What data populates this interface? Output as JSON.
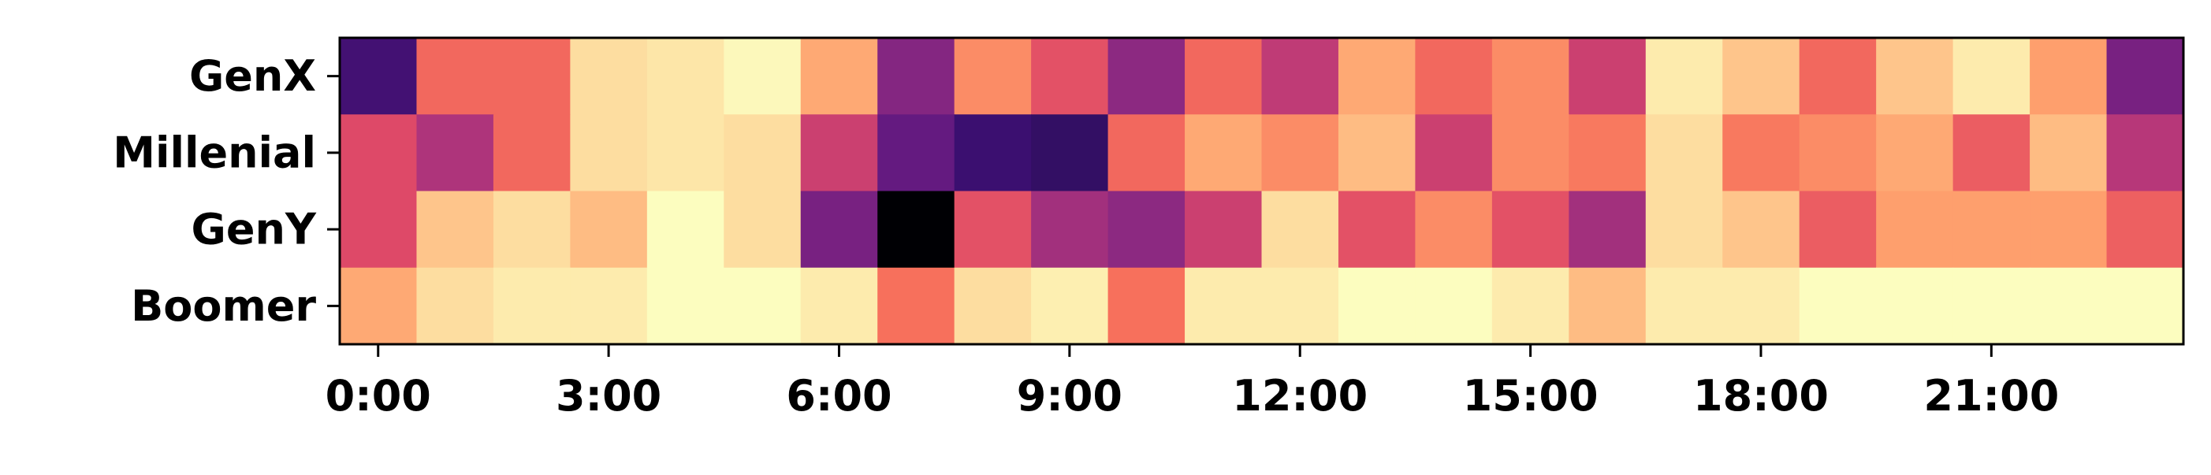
{
  "chart_data": {
    "type": "heatmap",
    "title": "",
    "xlabel": "",
    "ylabel": "",
    "colormap": "magma",
    "value_range": [
      0,
      1
    ],
    "rows": [
      "GenX",
      "Millenial",
      "GenY",
      "Boomer"
    ],
    "columns": [
      "0:00",
      "1:00",
      "2:00",
      "3:00",
      "4:00",
      "5:00",
      "6:00",
      "7:00",
      "8:00",
      "9:00",
      "10:00",
      "11:00",
      "12:00",
      "13:00",
      "14:00",
      "15:00",
      "16:00",
      "17:00",
      "18:00",
      "19:00",
      "20:00",
      "21:00",
      "22:00",
      "23:00"
    ],
    "x_tick_labels": [
      {
        "col": 0,
        "label": "0:00"
      },
      {
        "col": 3,
        "label": "3:00"
      },
      {
        "col": 6,
        "label": "6:00"
      },
      {
        "col": 9,
        "label": "9:00"
      },
      {
        "col": 12,
        "label": "12:00"
      },
      {
        "col": 15,
        "label": "15:00"
      },
      {
        "col": 18,
        "label": "18:00"
      },
      {
        "col": 21,
        "label": "21:00"
      }
    ],
    "values": [
      [
        0.22,
        0.68,
        0.68,
        0.93,
        0.95,
        0.99,
        0.82,
        0.38,
        0.76,
        0.62,
        0.4,
        0.68,
        0.52,
        0.82,
        0.68,
        0.76,
        0.55,
        0.96,
        0.88,
        0.68,
        0.88,
        0.96,
        0.8,
        0.35
      ],
      [
        0.6,
        0.48,
        0.68,
        0.93,
        0.95,
        0.93,
        0.55,
        0.3,
        0.2,
        0.18,
        0.68,
        0.82,
        0.76,
        0.86,
        0.55,
        0.76,
        0.72,
        0.93,
        0.72,
        0.76,
        0.82,
        0.65,
        0.86,
        0.5
      ],
      [
        0.6,
        0.88,
        0.93,
        0.86,
        1.0,
        0.93,
        0.35,
        0.0,
        0.62,
        0.45,
        0.4,
        0.55,
        0.93,
        0.62,
        0.76,
        0.62,
        0.45,
        0.93,
        0.88,
        0.65,
        0.8,
        0.8,
        0.8,
        0.66
      ],
      [
        0.82,
        0.93,
        0.96,
        0.96,
        1.0,
        1.0,
        0.96,
        0.7,
        0.93,
        0.97,
        0.7,
        0.96,
        0.96,
        1.0,
        1.0,
        0.96,
        0.86,
        0.96,
        0.96,
        1.0,
        1.0,
        1.0,
        1.0,
        1.0
      ]
    ]
  }
}
